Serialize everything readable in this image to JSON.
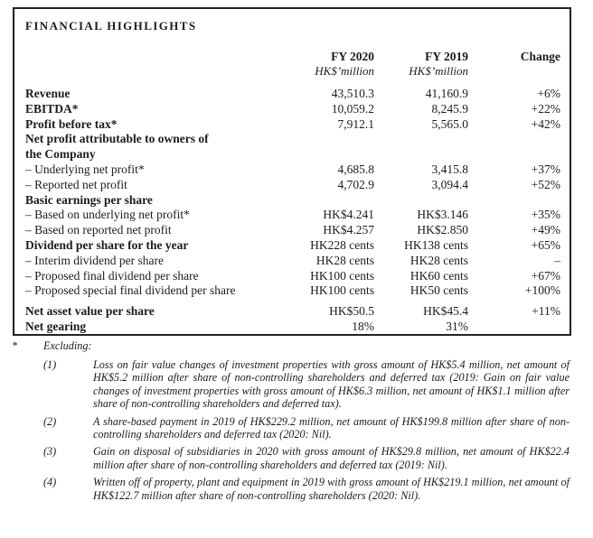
{
  "highlights": {
    "title": "FINANCIAL HIGHLIGHTS",
    "header": {
      "fy2020": "FY 2020",
      "fy2019": "FY 2019",
      "change": "Change",
      "unit_2020": "HK$’million",
      "unit_2019": "HK$’million"
    },
    "rows": [
      {
        "label": "Revenue",
        "fy2020": "43,510.3",
        "fy2019": "41,160.9",
        "change": "+6%"
      },
      {
        "label": "EBITDA*",
        "fy2020": "10,059.2",
        "fy2019": "8,245.9",
        "change": "+22%"
      },
      {
        "label": "Profit before tax*",
        "fy2020": "7,912.1",
        "fy2019": "5,565.0",
        "change": "+42%"
      },
      {
        "label": "Net profit attributable to owners of",
        "fy2020": "",
        "fy2019": "",
        "change": ""
      },
      {
        "label": "the Company",
        "fy2020": "",
        "fy2019": "",
        "change": ""
      },
      {
        "label": "– Underlying net profit*",
        "fy2020": "4,685.8",
        "fy2019": "3,415.8",
        "change": "+37%"
      },
      {
        "label": "– Reported net profit",
        "fy2020": "4,702.9",
        "fy2019": "3,094.4",
        "change": "+52%"
      },
      {
        "label": "Basic earnings per share",
        "fy2020": "",
        "fy2019": "",
        "change": ""
      },
      {
        "label": "– Based on underlying net profit*",
        "fy2020": "HK$4.241",
        "fy2019": "HK$3.146",
        "change": "+35%"
      },
      {
        "label": "– Based on reported net profit",
        "fy2020": "HK$4.257",
        "fy2019": "HK$2.850",
        "change": "+49%"
      },
      {
        "label": "Dividend per share for the year",
        "fy2020": "HK228 cents",
        "fy2019": "HK138 cents",
        "change": "+65%"
      },
      {
        "label": "– Interim dividend per share",
        "fy2020": "HK28 cents",
        "fy2019": "HK28 cents",
        "change": "–"
      },
      {
        "label": "– Proposed final dividend per share",
        "fy2020": "HK100 cents",
        "fy2019": "HK60 cents",
        "change": "+67%"
      },
      {
        "label": "– Proposed special final dividend per share",
        "fy2020": "HK100 cents",
        "fy2019": "HK50 cents",
        "change": "+100%"
      },
      {
        "label": "Net asset value per share",
        "fy2020": "HK$50.5",
        "fy2019": "HK$45.4",
        "change": "+11%"
      },
      {
        "label": "Net gearing",
        "fy2020": "18%",
        "fy2019": "31%",
        "change": ""
      }
    ]
  },
  "footnotes": {
    "marker": "*",
    "heading": "Excluding:",
    "items": [
      {
        "num": "(1)",
        "text": "Loss on fair value changes of investment properties with gross amount of HK$5.4 million, net amount of HK$5.2 million after share of non-controlling shareholders and deferred tax (2019: Gain on fair value changes of investment properties with gross amount of HK$6.3 million, net amount of HK$1.1 million after share of non-controlling shareholders and deferred tax)."
      },
      {
        "num": "(2)",
        "text": "A share-based payment in 2019 of HK$229.2 million, net amount of HK$199.8 million after share of non-controlling shareholders and deferred tax (2020: Nil)."
      },
      {
        "num": "(3)",
        "text": "Gain on disposal of subsidiaries in 2020 with gross amount of HK$29.8 million, net amount of HK$22.4 million after share of non-controlling shareholders and deferred tax (2019: Nil)."
      },
      {
        "num": "(4)",
        "text": "Written off of property, plant and equipment in 2019 with gross amount of HK$219.1 million, net amount of HK$122.7 million after share of non-controlling shareholders (2020: Nil)."
      }
    ]
  }
}
